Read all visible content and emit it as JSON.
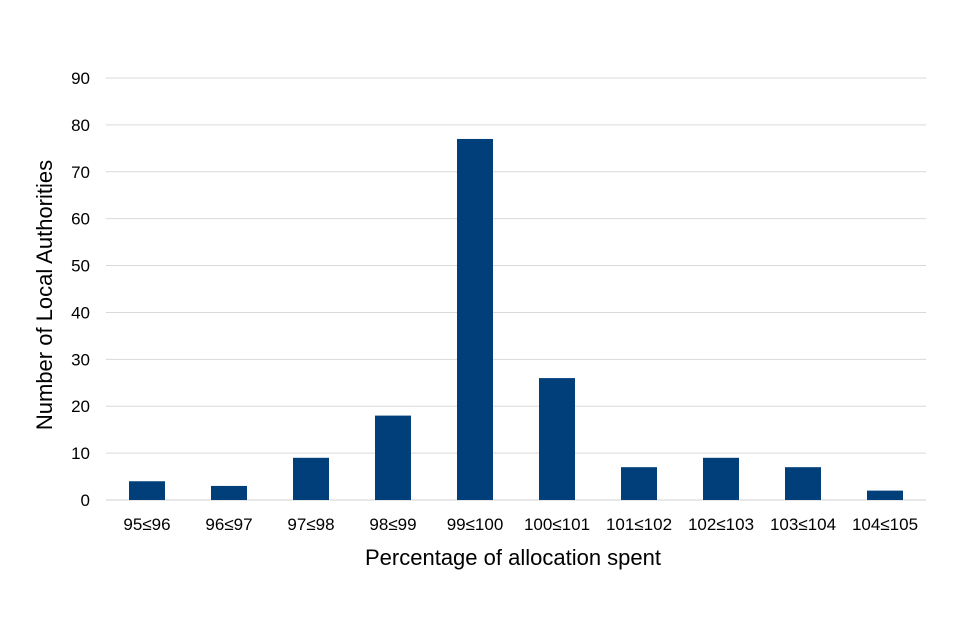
{
  "chart_data": {
    "type": "bar",
    "title": "",
    "xlabel": "Percentage of allocation spent",
    "ylabel": "Number of Local Authorities",
    "categories": [
      "95≤96",
      "96≤97",
      "97≤98",
      "98≤99",
      "99≤100",
      "100≤101",
      "101≤102",
      "102≤103",
      "103≤104",
      "104≤105"
    ],
    "values": [
      4,
      3,
      9,
      18,
      77,
      26,
      7,
      9,
      7,
      2
    ],
    "ylim": [
      0,
      90
    ],
    "yticks": [
      0,
      10,
      20,
      30,
      40,
      50,
      60,
      70,
      80,
      90
    ],
    "grid": true,
    "legend": "none",
    "bar_color": "#003f7a"
  }
}
